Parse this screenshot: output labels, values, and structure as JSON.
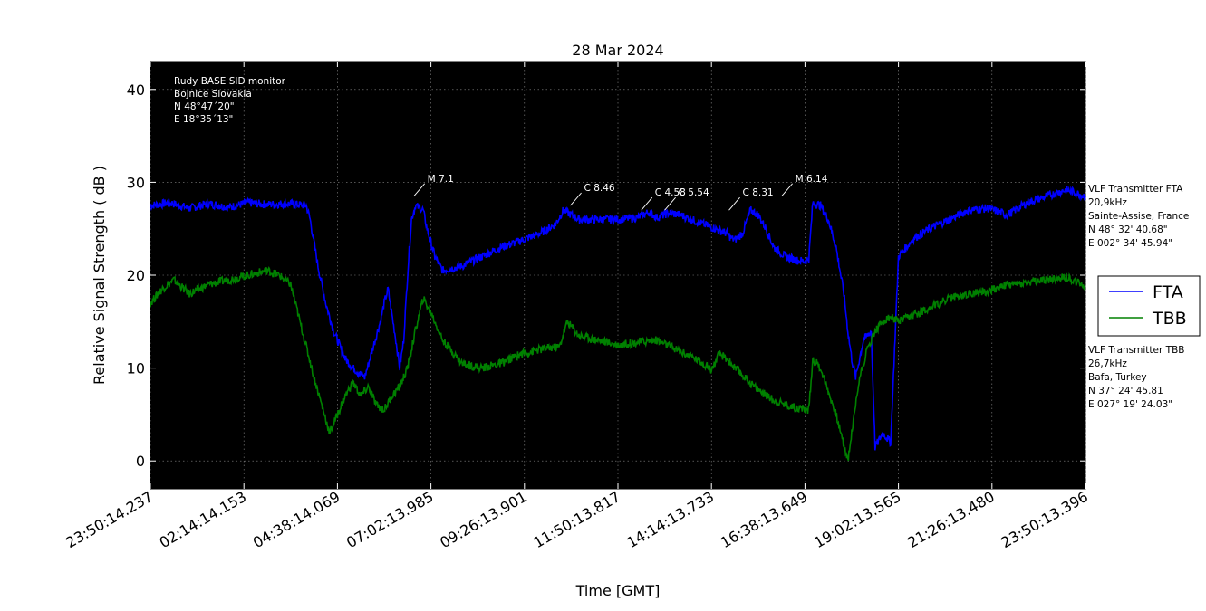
{
  "chart_data": {
    "type": "line",
    "title": "28 Mar 2024",
    "xlabel": "Time [GMT]",
    "ylabel": "Relative Signal Strength ( dB )",
    "xlim_hours": [
      0,
      24
    ],
    "ylim": [
      -3,
      43
    ],
    "y_ticks": [
      0,
      10,
      20,
      30,
      40
    ],
    "x_tick_labels": [
      "23:50:14.237",
      "02:14:14.153",
      "04:38:14.069",
      "07:02:13.985",
      "09:26:13.901",
      "11:50:13.817",
      "14:14:13.733",
      "16:38:13.649",
      "19:02:13.565",
      "21:26:13.480",
      "23:50:13.396"
    ],
    "x_tick_hours": [
      0,
      2.4,
      4.8,
      7.2,
      9.6,
      12,
      14.4,
      16.8,
      19.2,
      21.6,
      24
    ],
    "grid": true,
    "background": "#000000",
    "legend": {
      "position": "right",
      "entries": [
        "FTA",
        "TBB"
      ]
    },
    "series": [
      {
        "name": "FTA",
        "color": "#0000ff",
        "x": [
          0,
          0.5,
          1,
          1.5,
          2,
          2.5,
          3,
          3.5,
          4,
          4.1,
          4.3,
          4.5,
          4.7,
          4.9,
          5,
          5.2,
          5.5,
          5.7,
          5.9,
          6.0,
          6.1,
          6.3,
          6.4,
          6.5,
          6.6,
          6.7,
          6.8,
          7.0,
          7.1,
          7.3,
          7.5,
          8,
          8.5,
          9,
          9.5,
          10,
          10.2,
          10.4,
          10.6,
          10.8,
          11,
          11.5,
          12,
          12.5,
          12.8,
          13.0,
          13.3,
          13.6,
          14.0,
          14.5,
          14.8,
          14.9,
          15.0,
          15.2,
          15.4,
          15.6,
          15.8,
          16.0,
          16.3,
          16.6,
          16.8,
          16.9,
          17.0,
          17.2,
          17.4,
          17.6,
          17.8,
          17.9,
          18.0,
          18.1,
          18.3,
          18.5,
          18.6,
          18.8,
          19.0,
          19.2,
          19.4,
          19.6,
          20,
          20.5,
          21,
          21.5,
          22,
          22.5,
          23,
          23.5,
          24
        ],
        "y": [
          27.5,
          27.8,
          27.2,
          27.7,
          27.3,
          27.8,
          27.6,
          27.7,
          27.5,
          26,
          21,
          17,
          14,
          12,
          11,
          10,
          9,
          12,
          15,
          17,
          18.5,
          13,
          10,
          13,
          20,
          26,
          27.5,
          27,
          25,
          22,
          20.5,
          21,
          22,
          23,
          23.7,
          24.5,
          25,
          25.5,
          27,
          26.5,
          26,
          26,
          26,
          26.2,
          26.8,
          26.2,
          26.7,
          26.5,
          25.8,
          25,
          24.5,
          24,
          23.8,
          24.5,
          27,
          26.5,
          25,
          23,
          22,
          21.6,
          21.5,
          21.8,
          27.8,
          27.5,
          26,
          23,
          18,
          14,
          11,
          9,
          13,
          14,
          1.5,
          3,
          2,
          22,
          23,
          24,
          25,
          26,
          27,
          27.2,
          26.5,
          27.8,
          28.5,
          29.2,
          28.5
        ]
      },
      {
        "name": "TBB",
        "color": "#008000",
        "x": [
          0,
          0.3,
          0.6,
          1,
          1.5,
          2,
          2.5,
          3,
          3.3,
          3.6,
          3.9,
          4.2,
          4.4,
          4.6,
          4.8,
          5,
          5.2,
          5.4,
          5.6,
          5.8,
          6.0,
          6.2,
          6.4,
          6.6,
          6.8,
          7.0,
          7.2,
          7.5,
          8,
          8.5,
          9,
          9.5,
          10,
          10.3,
          10.5,
          10.7,
          11,
          11.5,
          12,
          12.5,
          13,
          13.5,
          14,
          14.2,
          14.4,
          14.6,
          14.8,
          15,
          15.5,
          16,
          16.5,
          16.9,
          17.0,
          17.2,
          17.4,
          17.6,
          17.9,
          18.1,
          18.2,
          18.4,
          18.6,
          18.8,
          19.0,
          19.2,
          19.5,
          20,
          20.5,
          21,
          21.5,
          22,
          22.5,
          23,
          23.5,
          24
        ],
        "y": [
          17,
          18.5,
          19.5,
          18,
          19,
          19.5,
          20,
          20.5,
          20,
          19,
          14,
          9,
          6,
          3,
          5,
          7,
          8.5,
          7,
          8,
          6,
          5.5,
          7,
          8,
          10,
          14,
          17.5,
          16,
          13,
          10.5,
          10,
          10.5,
          11.5,
          12,
          12.2,
          12.3,
          15,
          13.5,
          13,
          12.5,
          12.8,
          13,
          12,
          11,
          10.5,
          9.8,
          11.5,
          11,
          10,
          8,
          6.5,
          5.8,
          5.5,
          11,
          10,
          7.5,
          5,
          0,
          6,
          9,
          12,
          14,
          15,
          15.5,
          15,
          15.5,
          16.5,
          17.5,
          18,
          18.3,
          19,
          19.2,
          19.5,
          19.8,
          18.8
        ]
      }
    ],
    "annotations": [
      {
        "label": "M 7.1",
        "hour": 6.76,
        "value": 28.5
      },
      {
        "label": "C 8.46",
        "hour": 10.78,
        "value": 27.5
      },
      {
        "label": "C 4.58",
        "hour": 12.6,
        "value": 27.0
      },
      {
        "label": "C 5.54",
        "hour": 13.2,
        "value": 27.0
      },
      {
        "label": "C 8.31",
        "hour": 14.85,
        "value": 27.0
      },
      {
        "label": "M 6.14",
        "hour": 16.2,
        "value": 28.5
      }
    ],
    "station_info": [
      "Rudy BASE SID monitor",
      "Bojnice Slovakia",
      "N 48°47´20\"",
      "E 18°35´13\""
    ],
    "transmitter_fta": [
      "VLF Transmitter FTA",
      "20,9kHz",
      "Sainte-Assise, France",
      "N 48° 32' 40.68\"",
      "E 002° 34' 45.94\""
    ],
    "transmitter_tbb": [
      "VLF Transmitter TBB",
      "26,7kHz",
      "Bafa, Turkey",
      "N 37° 24' 45.81",
      "E 027° 19' 24.03\""
    ]
  }
}
